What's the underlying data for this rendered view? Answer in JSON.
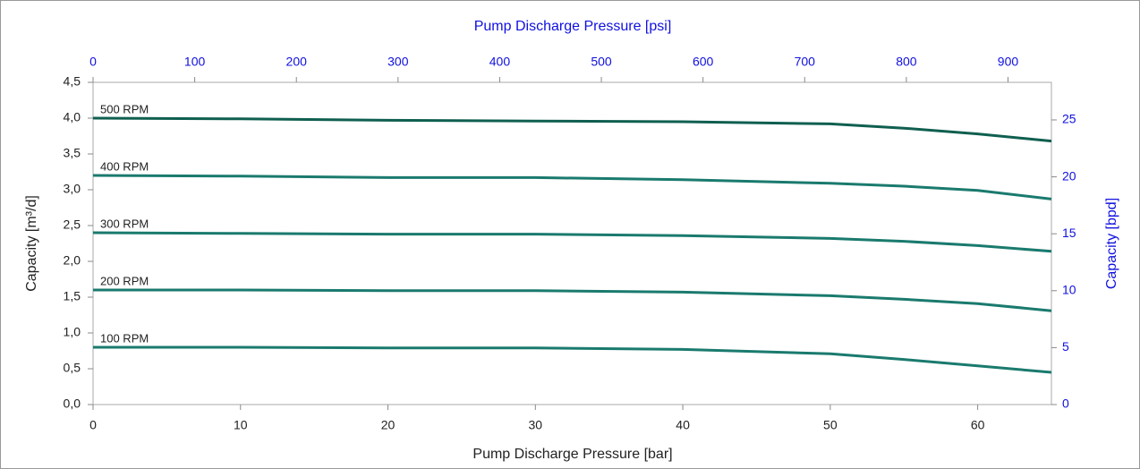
{
  "chart_data": {
    "type": "line",
    "xlabel": "Pump Discharge Pressure [bar]",
    "x2label": "Pump Discharge Pressure [psi]",
    "ylabel": "Capacity [m³/d]",
    "y2label": "Capacity [bpd]",
    "x": [
      0,
      10,
      20,
      30,
      40,
      50,
      55,
      60,
      65
    ],
    "series": [
      {
        "name": "500 RPM",
        "color": "#0f5f50",
        "values": [
          4.0,
          3.99,
          3.97,
          3.96,
          3.95,
          3.92,
          3.86,
          3.78,
          3.68
        ]
      },
      {
        "name": "400 RPM",
        "color": "#1a7a6e",
        "values": [
          3.2,
          3.19,
          3.17,
          3.17,
          3.14,
          3.09,
          3.05,
          2.99,
          2.87
        ]
      },
      {
        "name": "300 RPM",
        "color": "#1a7a6e",
        "values": [
          2.4,
          2.39,
          2.38,
          2.38,
          2.36,
          2.32,
          2.28,
          2.22,
          2.14
        ]
      },
      {
        "name": "200 RPM",
        "color": "#1a7a6e",
        "values": [
          1.6,
          1.6,
          1.59,
          1.59,
          1.57,
          1.52,
          1.47,
          1.41,
          1.31
        ]
      },
      {
        "name": "100 RPM",
        "color": "#1a7a6e",
        "values": [
          0.8,
          0.8,
          0.79,
          0.79,
          0.77,
          0.71,
          0.63,
          0.54,
          0.45
        ]
      }
    ],
    "xlim": [
      0,
      65
    ],
    "xticks": [
      0,
      10,
      20,
      30,
      40,
      50,
      60
    ],
    "x2lim": [
      0,
      942.7
    ],
    "x2ticks": [
      0,
      100,
      200,
      300,
      400,
      500,
      600,
      700,
      800,
      900
    ],
    "ylim": [
      0,
      4.5
    ],
    "yticks": [
      {
        "value": 0,
        "label": "0,0"
      },
      {
        "value": 0.5,
        "label": "0,5"
      },
      {
        "value": 1,
        "label": "1,0"
      },
      {
        "value": 1.5,
        "label": "1,5"
      },
      {
        "value": 2,
        "label": "2,0"
      },
      {
        "value": 2.5,
        "label": "2,5"
      },
      {
        "value": 3,
        "label": "3,0"
      },
      {
        "value": 3.5,
        "label": "3,5"
      },
      {
        "value": 4,
        "label": "4,0"
      },
      {
        "value": 4.5,
        "label": "4,5"
      }
    ],
    "y2lim": [
      0,
      28.3
    ],
    "y2ticks": [
      0,
      5,
      10,
      15,
      20,
      25
    ],
    "secondary_color": "#1010e0",
    "grid": false
  }
}
